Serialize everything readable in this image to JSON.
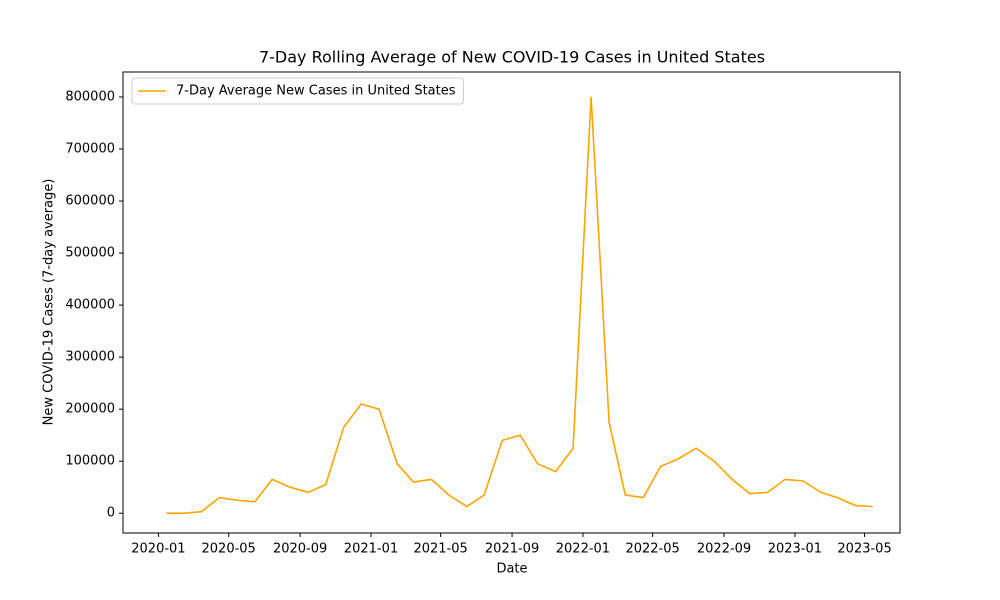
{
  "chart_data": {
    "type": "line",
    "title": "7-Day Rolling Average of New COVID-19 Cases in United States",
    "x_label": "Date",
    "y_label": "New COVID-19 Cases (7-day average)",
    "x": [
      "2020-01",
      "2020-02",
      "2020-03",
      "2020-04",
      "2020-05",
      "2020-06",
      "2020-07",
      "2020-08",
      "2020-09",
      "2020-10",
      "2020-11",
      "2020-12",
      "2021-01",
      "2021-02",
      "2021-03",
      "2021-04",
      "2021-05",
      "2021-06",
      "2021-07",
      "2021-08",
      "2021-09",
      "2021-10",
      "2021-11",
      "2021-12",
      "2022-01",
      "2022-02",
      "2022-03",
      "2022-04",
      "2022-05",
      "2022-06",
      "2022-07",
      "2022-08",
      "2022-09",
      "2022-10",
      "2022-11",
      "2022-12",
      "2023-01",
      "2023-02",
      "2023-03",
      "2023-04",
      "2023-05"
    ],
    "series": [
      {
        "name": "7-Day Average New Cases in United States",
        "color": "#ffa500",
        "values": [
          0,
          0,
          3000,
          30000,
          25000,
          22000,
          65000,
          50000,
          40000,
          55000,
          165000,
          210000,
          200000,
          95000,
          60000,
          65000,
          35000,
          13000,
          35000,
          140000,
          150000,
          95000,
          80000,
          125000,
          800000,
          175000,
          35000,
          30000,
          90000,
          105000,
          125000,
          100000,
          65000,
          38000,
          40000,
          65000,
          62000,
          40000,
          30000,
          15000,
          13000
        ]
      }
    ],
    "xlim": [
      "2019-11",
      "2023-07"
    ],
    "xticks": [
      "2020-01",
      "2020-05",
      "2020-09",
      "2021-01",
      "2021-05",
      "2021-09",
      "2022-01",
      "2022-05",
      "2022-09",
      "2023-01",
      "2023-05"
    ],
    "ylim": [
      -38000,
      848000
    ],
    "yticks": [
      0,
      100000,
      200000,
      300000,
      400000,
      500000,
      600000,
      700000,
      800000
    ],
    "legend": "upper left",
    "grid": false
  }
}
